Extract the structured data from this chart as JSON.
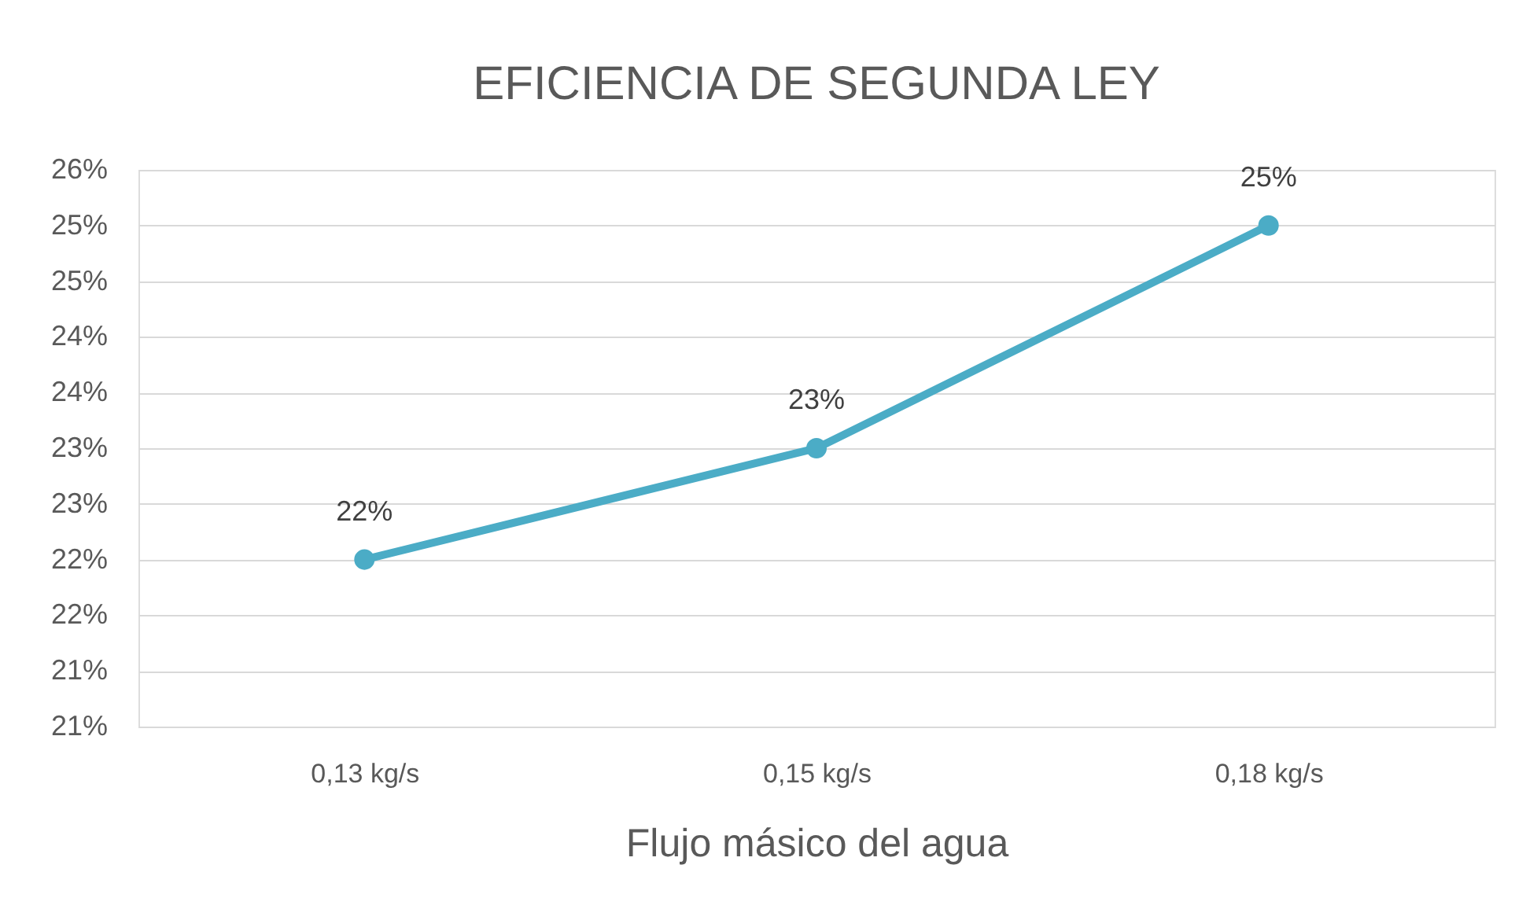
{
  "chart_data": {
    "type": "line",
    "title": "EFICIENCIA DE SEGUNDA LEY",
    "xlabel": "Flujo másico del agua",
    "categories": [
      "0,13 kg/s",
      "0,15 kg/s",
      "0,18 kg/s"
    ],
    "series": [
      {
        "color": "#4bacc6",
        "values": [
          22,
          23,
          25
        ],
        "value_labels": [
          "22%",
          "23%",
          "25%"
        ]
      }
    ],
    "ylim": [
      20.5,
      25.5
    ],
    "yticks": [
      {
        "value": 20.5,
        "label": "21%"
      },
      {
        "value": 21,
        "label": "21%"
      },
      {
        "value": 21.5,
        "label": "22%"
      },
      {
        "value": 22,
        "label": "22%"
      },
      {
        "value": 22.5,
        "label": "23%"
      },
      {
        "value": 23,
        "label": "23%"
      },
      {
        "value": 23.5,
        "label": "24%"
      },
      {
        "value": 24,
        "label": "24%"
      },
      {
        "value": 24.5,
        "label": "25%"
      },
      {
        "value": 25,
        "label": "25%"
      },
      {
        "value": 25.5,
        "label": "26%"
      }
    ],
    "grid": "y",
    "marker": "circle",
    "line_style": "solid"
  }
}
